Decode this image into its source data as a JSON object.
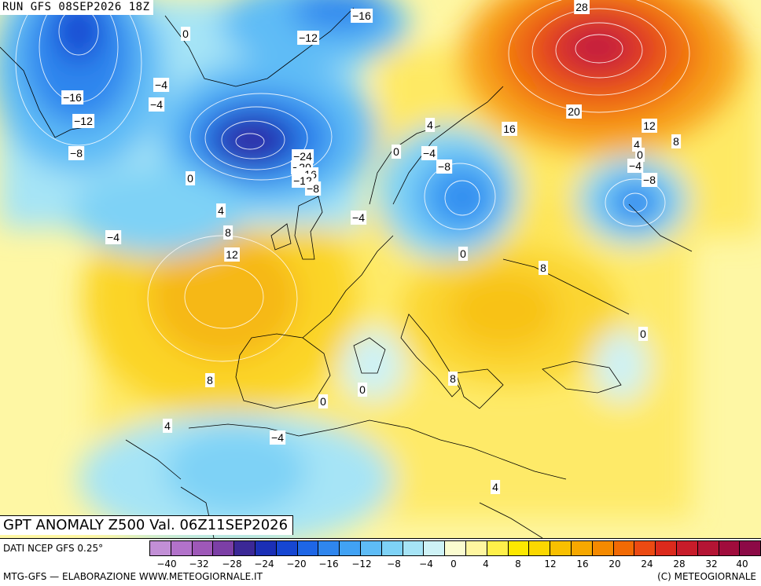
{
  "header": {
    "run_label": "RUN GFS 08SEP2026 18Z"
  },
  "map_title": "GPT ANOMALY Z500 Val. 06Z11SEP2026",
  "footer": {
    "data_source": "DATI NCEP GFS 0.25°",
    "credit_left": "MTG-GFS — ELABORAZIONE WWW.METEOGIORNALE.IT",
    "credit_right": "(C) METEOGIORNALE"
  },
  "contour_labels": [
    {
      "text": "0"
    },
    {
      "text": "−16"
    },
    {
      "text": "−12"
    },
    {
      "text": "28"
    },
    {
      "text": "−4"
    },
    {
      "text": "−16"
    },
    {
      "text": "−4"
    },
    {
      "text": "−12"
    },
    {
      "text": "−8"
    },
    {
      "text": "0"
    },
    {
      "text": "−24"
    },
    {
      "text": "−20"
    },
    {
      "text": "−16"
    },
    {
      "text": "−12"
    },
    {
      "text": "−8"
    },
    {
      "text": "4"
    },
    {
      "text": "0"
    },
    {
      "text": "−4"
    },
    {
      "text": "−8"
    },
    {
      "text": "20"
    },
    {
      "text": "16"
    },
    {
      "text": "12"
    },
    {
      "text": "8"
    },
    {
      "text": "4"
    },
    {
      "text": "0"
    },
    {
      "text": "−4"
    },
    {
      "text": "−8"
    },
    {
      "text": "4"
    },
    {
      "text": "−4"
    },
    {
      "text": "8"
    },
    {
      "text": "−4"
    },
    {
      "text": "12"
    },
    {
      "text": "0"
    },
    {
      "text": "8"
    },
    {
      "text": "0"
    },
    {
      "text": "8"
    },
    {
      "text": "8"
    },
    {
      "text": "0"
    },
    {
      "text": "0"
    },
    {
      "text": "4"
    },
    {
      "text": "−4"
    },
    {
      "text": "4"
    }
  ],
  "legend": {
    "colors": [
      "#c28fd6",
      "#b272ca",
      "#9e58b8",
      "#7c3fa6",
      "#3b2896",
      "#1b2fb6",
      "#1646d2",
      "#1e66e6",
      "#2f86ee",
      "#41a2f4",
      "#5ebcf6",
      "#7ed2f6",
      "#a6e4f6",
      "#cef2f6",
      "#fbfcd0",
      "#fff6a0",
      "#fff04a",
      "#fde800",
      "#fbd800",
      "#f9c000",
      "#f7a800",
      "#f58a00",
      "#f26a04",
      "#ec4a12",
      "#dc2a1c",
      "#c81c2a",
      "#b41434",
      "#a00c3c",
      "#8c0a46"
    ],
    "ticks": [
      "−40",
      "−32",
      "−28",
      "−24",
      "−20",
      "−16",
      "−12",
      "−8",
      "−4",
      "0",
      "4",
      "8",
      "12",
      "16",
      "20",
      "24",
      "28",
      "32",
      "40"
    ]
  }
}
